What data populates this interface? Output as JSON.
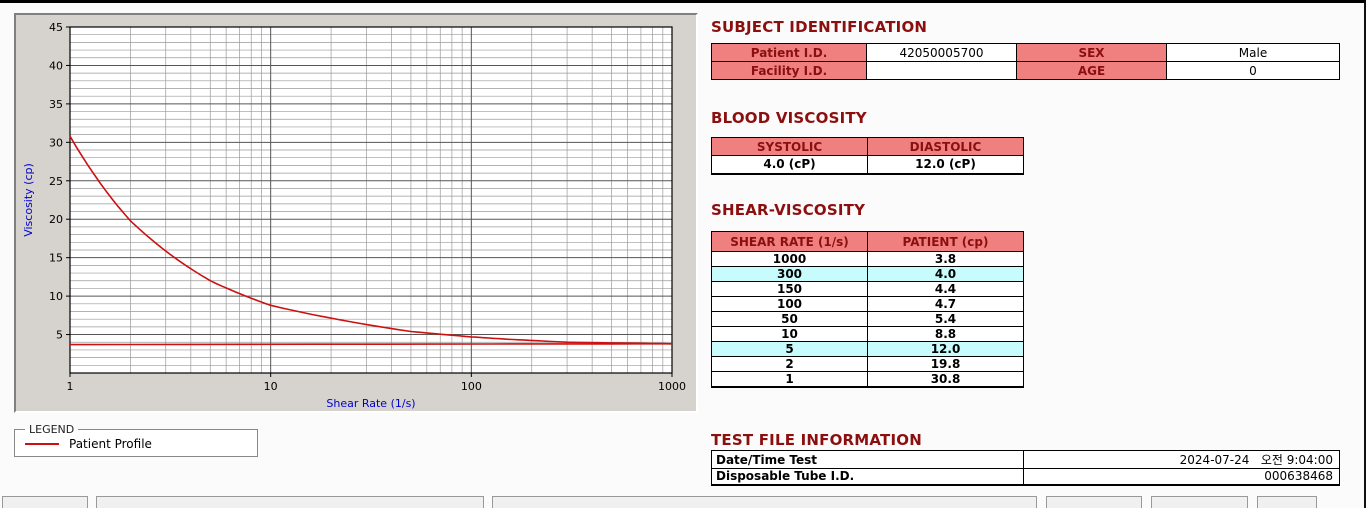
{
  "chart_data": {
    "type": "line",
    "title": "",
    "xlabel": "Shear Rate (1/s)",
    "ylabel": "Viscosity (cp)",
    "x_scale": "log",
    "xlim": [
      1,
      1000
    ],
    "ylim": [
      0,
      45
    ],
    "x_ticks": [
      1,
      10,
      100,
      1000
    ],
    "y_ticks": [
      5,
      10,
      15,
      20,
      25,
      30,
      35,
      40,
      45
    ],
    "grid": "dense minor gridlines, log-x",
    "series": [
      {
        "name": "Patient Profile",
        "color": "#cc1111",
        "x": [
          1,
          2,
          5,
          10,
          50,
          100,
          150,
          300,
          1000
        ],
        "y": [
          30.8,
          19.8,
          12.0,
          8.8,
          5.4,
          4.7,
          4.4,
          4.0,
          3.8
        ]
      },
      {
        "name": "flat-line",
        "color": "#cc1111",
        "x": [
          1,
          1000
        ],
        "y": [
          3.7,
          3.8
        ]
      }
    ],
    "legend": {
      "title": "LEGEND",
      "position": "below-chart",
      "entries": [
        {
          "label": "Patient Profile",
          "color": "#cc1111"
        }
      ]
    }
  },
  "subject": {
    "title": "SUBJECT IDENTIFICATION",
    "patient_id_label": "Patient I.D.",
    "patient_id_value": "42050005700",
    "sex_label": "SEX",
    "sex_value": "Male",
    "facility_id_label": "Facility I.D.",
    "facility_id_value": "",
    "age_label": "AGE",
    "age_value": "0"
  },
  "blood_viscosity": {
    "title": "BLOOD VISCOSITY",
    "systolic_label": "SYSTOLIC",
    "diastolic_label": "DIASTOLIC",
    "systolic_value": "4.0 (cP)",
    "diastolic_value": "12.0 (cP)"
  },
  "shear_viscosity": {
    "title": "SHEAR-VISCOSITY",
    "headers": [
      "SHEAR RATE (1/s)",
      "PATIENT (cp)"
    ],
    "rows": [
      {
        "rate": "1000",
        "value": "3.8",
        "highlight": false
      },
      {
        "rate": "300",
        "value": "4.0",
        "highlight": true
      },
      {
        "rate": "150",
        "value": "4.4",
        "highlight": false
      },
      {
        "rate": "100",
        "value": "4.7",
        "highlight": false
      },
      {
        "rate": "50",
        "value": "5.4",
        "highlight": false
      },
      {
        "rate": "10",
        "value": "8.8",
        "highlight": false
      },
      {
        "rate": "5",
        "value": "12.0",
        "highlight": true
      },
      {
        "rate": "2",
        "value": "19.8",
        "highlight": false
      },
      {
        "rate": "1",
        "value": "30.8",
        "highlight": false
      }
    ]
  },
  "test_file": {
    "title": "TEST FILE INFORMATION",
    "date_label": "Date/Time Test",
    "date_value": "2024-07-24   오전 9:04:00",
    "tube_label": "Disposable Tube I.D.",
    "tube_value": "000638468"
  },
  "colors": {
    "heading": "#8b0f0f",
    "table_header_bg": "#f08080",
    "highlight_bg": "#c8fbfb",
    "curve": "#cc1111",
    "axis_label": "#0000cc",
    "panel_bg": "#d6d3ce"
  }
}
